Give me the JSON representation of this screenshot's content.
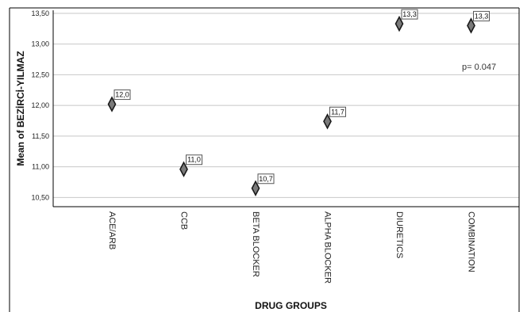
{
  "chart_data": {
    "type": "scatter",
    "title": "",
    "xlabel": "DRUG GROUPS",
    "ylabel": "Mean of BEZİRCİ-YILMAZ",
    "categories": [
      "ACE/ARB",
      "CCB",
      "BETA BLOCKER",
      "ALPHA BLOCKER",
      "DIURETICS",
      "COMBINATION"
    ],
    "values": [
      12.02,
      10.96,
      10.65,
      11.74,
      13.33,
      13.3
    ],
    "data_labels": [
      "12,0",
      "11,0",
      "10,7",
      "11,7",
      "13,3",
      "13,3"
    ],
    "ylim": [
      10.35,
      13.55
    ],
    "yticks": [
      10.5,
      11.0,
      11.5,
      12.0,
      12.5,
      13.0,
      13.5
    ],
    "ytick_labels": [
      "10,50",
      "11,00",
      "11,50",
      "12,00",
      "12,50",
      "13,00",
      "13,50"
    ],
    "grid": true,
    "marker": "diamond",
    "marker_color": "#7a7a7a",
    "annotation": "p= 0.047"
  }
}
